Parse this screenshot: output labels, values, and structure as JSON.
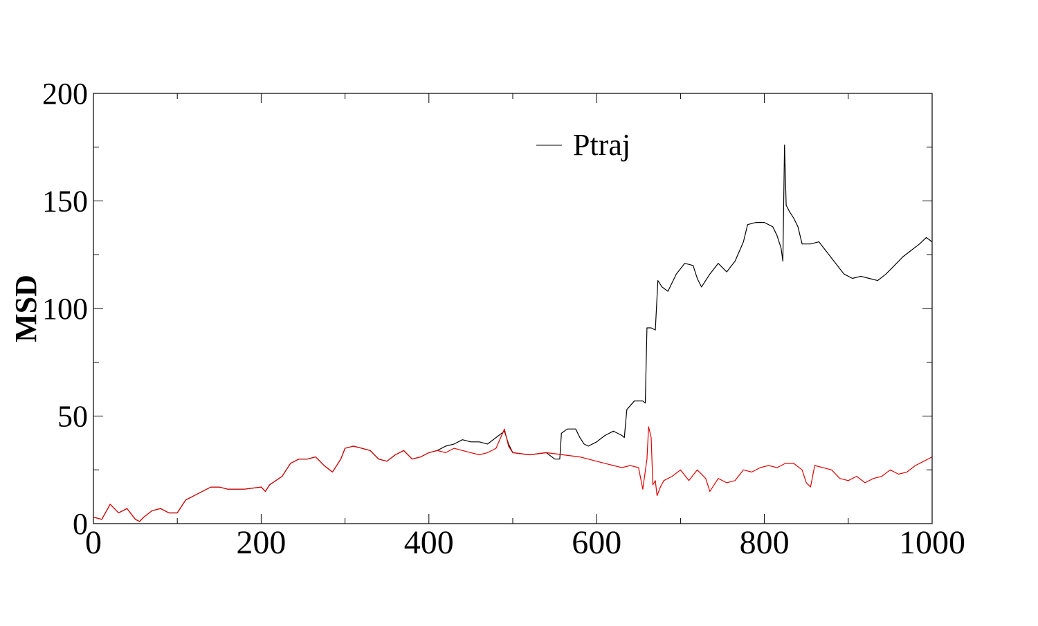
{
  "chart_data": {
    "type": "line",
    "title": "",
    "xlabel": "",
    "ylabel": "MSD",
    "xlim": [
      0,
      1000
    ],
    "ylim": [
      0,
      200
    ],
    "x_ticks": [
      0,
      200,
      400,
      600,
      800,
      1000
    ],
    "y_ticks": [
      0,
      50,
      100,
      150,
      200
    ],
    "grid": false,
    "legend_position": "top-center",
    "series": [
      {
        "name": "Ptraj",
        "color": "#000000",
        "points": [
          [
            0,
            3
          ],
          [
            10,
            2
          ],
          [
            20,
            9
          ],
          [
            30,
            5
          ],
          [
            40,
            7
          ],
          [
            50,
            2
          ],
          [
            55,
            1
          ],
          [
            60,
            3
          ],
          [
            70,
            6
          ],
          [
            80,
            7
          ],
          [
            90,
            5
          ],
          [
            100,
            5
          ],
          [
            110,
            11
          ],
          [
            120,
            13
          ],
          [
            130,
            15
          ],
          [
            140,
            17
          ],
          [
            150,
            17
          ],
          [
            160,
            16
          ],
          [
            180,
            16
          ],
          [
            200,
            17
          ],
          [
            205,
            15
          ],
          [
            210,
            18
          ],
          [
            225,
            22
          ],
          [
            235,
            28
          ],
          [
            245,
            30
          ],
          [
            255,
            30
          ],
          [
            265,
            31
          ],
          [
            275,
            27
          ],
          [
            285,
            24
          ],
          [
            295,
            30
          ],
          [
            300,
            35
          ],
          [
            310,
            36
          ],
          [
            320,
            35
          ],
          [
            330,
            34
          ],
          [
            340,
            30
          ],
          [
            350,
            29
          ],
          [
            360,
            32
          ],
          [
            370,
            34
          ],
          [
            380,
            30
          ],
          [
            390,
            31
          ],
          [
            400,
            33
          ],
          [
            410,
            34
          ],
          [
            420,
            36
          ],
          [
            430,
            37
          ],
          [
            440,
            39
          ],
          [
            450,
            38
          ],
          [
            460,
            38
          ],
          [
            470,
            37
          ],
          [
            480,
            40
          ],
          [
            490,
            43
          ],
          [
            495,
            37
          ],
          [
            500,
            33
          ],
          [
            520,
            32
          ],
          [
            540,
            33
          ],
          [
            550,
            30
          ],
          [
            556,
            30
          ],
          [
            558,
            42
          ],
          [
            565,
            44
          ],
          [
            575,
            44
          ],
          [
            580,
            40
          ],
          [
            585,
            37
          ],
          [
            590,
            36
          ],
          [
            600,
            38
          ],
          [
            610,
            41
          ],
          [
            620,
            43
          ],
          [
            630,
            41
          ],
          [
            633,
            40
          ],
          [
            636,
            53
          ],
          [
            645,
            57
          ],
          [
            655,
            57
          ],
          [
            658,
            56
          ],
          [
            660,
            91
          ],
          [
            665,
            91
          ],
          [
            670,
            90
          ],
          [
            673,
            113
          ],
          [
            678,
            110
          ],
          [
            685,
            108
          ],
          [
            695,
            116
          ],
          [
            705,
            121
          ],
          [
            715,
            120
          ],
          [
            720,
            114
          ],
          [
            725,
            110
          ],
          [
            735,
            116
          ],
          [
            745,
            121
          ],
          [
            755,
            117
          ],
          [
            765,
            122
          ],
          [
            775,
            131
          ],
          [
            780,
            139
          ],
          [
            790,
            140
          ],
          [
            800,
            140
          ],
          [
            810,
            138
          ],
          [
            815,
            134
          ],
          [
            820,
            128
          ],
          [
            822,
            122
          ],
          [
            824,
            176
          ],
          [
            826,
            148
          ],
          [
            830,
            145
          ],
          [
            835,
            142
          ],
          [
            840,
            138
          ],
          [
            845,
            130
          ],
          [
            855,
            130
          ],
          [
            865,
            131
          ],
          [
            875,
            126
          ],
          [
            885,
            121
          ],
          [
            895,
            116
          ],
          [
            905,
            114
          ],
          [
            915,
            115
          ],
          [
            925,
            114
          ],
          [
            935,
            113
          ],
          [
            945,
            116
          ],
          [
            955,
            120
          ],
          [
            965,
            124
          ],
          [
            975,
            127
          ],
          [
            985,
            130
          ],
          [
            993,
            133
          ],
          [
            1000,
            131
          ]
        ]
      },
      {
        "name": "",
        "color": "#e00000",
        "points": [
          [
            0,
            3
          ],
          [
            10,
            2
          ],
          [
            20,
            9
          ],
          [
            30,
            5
          ],
          [
            40,
            7
          ],
          [
            50,
            2
          ],
          [
            55,
            1
          ],
          [
            60,
            3
          ],
          [
            70,
            6
          ],
          [
            80,
            7
          ],
          [
            90,
            5
          ],
          [
            100,
            5
          ],
          [
            110,
            11
          ],
          [
            120,
            13
          ],
          [
            130,
            15
          ],
          [
            140,
            17
          ],
          [
            150,
            17
          ],
          [
            160,
            16
          ],
          [
            180,
            16
          ],
          [
            200,
            17
          ],
          [
            205,
            15
          ],
          [
            210,
            18
          ],
          [
            225,
            22
          ],
          [
            235,
            28
          ],
          [
            245,
            30
          ],
          [
            255,
            30
          ],
          [
            265,
            31
          ],
          [
            275,
            27
          ],
          [
            285,
            24
          ],
          [
            295,
            30
          ],
          [
            300,
            35
          ],
          [
            310,
            36
          ],
          [
            320,
            35
          ],
          [
            330,
            34
          ],
          [
            340,
            30
          ],
          [
            350,
            29
          ],
          [
            360,
            32
          ],
          [
            370,
            34
          ],
          [
            380,
            30
          ],
          [
            390,
            31
          ],
          [
            400,
            33
          ],
          [
            410,
            34
          ],
          [
            420,
            33
          ],
          [
            430,
            35
          ],
          [
            440,
            34
          ],
          [
            450,
            33
          ],
          [
            460,
            32
          ],
          [
            470,
            33
          ],
          [
            480,
            35
          ],
          [
            490,
            44
          ],
          [
            495,
            36
          ],
          [
            500,
            33
          ],
          [
            520,
            32
          ],
          [
            540,
            33
          ],
          [
            560,
            32
          ],
          [
            580,
            31
          ],
          [
            600,
            29
          ],
          [
            610,
            28
          ],
          [
            620,
            27
          ],
          [
            630,
            26
          ],
          [
            640,
            27
          ],
          [
            650,
            26
          ],
          [
            655,
            16
          ],
          [
            660,
            30
          ],
          [
            662,
            45
          ],
          [
            665,
            40
          ],
          [
            667,
            18
          ],
          [
            670,
            20
          ],
          [
            672,
            13
          ],
          [
            676,
            17
          ],
          [
            680,
            20
          ],
          [
            690,
            22
          ],
          [
            700,
            25
          ],
          [
            710,
            20
          ],
          [
            720,
            25
          ],
          [
            730,
            21
          ],
          [
            735,
            15
          ],
          [
            745,
            21
          ],
          [
            755,
            19
          ],
          [
            765,
            20
          ],
          [
            775,
            25
          ],
          [
            785,
            24
          ],
          [
            795,
            26
          ],
          [
            805,
            27
          ],
          [
            815,
            26
          ],
          [
            825,
            28
          ],
          [
            835,
            28
          ],
          [
            845,
            25
          ],
          [
            850,
            19
          ],
          [
            855,
            17
          ],
          [
            860,
            27
          ],
          [
            870,
            26
          ],
          [
            880,
            25
          ],
          [
            890,
            21
          ],
          [
            900,
            20
          ],
          [
            910,
            22
          ],
          [
            920,
            19
          ],
          [
            930,
            21
          ],
          [
            940,
            22
          ],
          [
            950,
            25
          ],
          [
            960,
            23
          ],
          [
            970,
            24
          ],
          [
            980,
            27
          ],
          [
            990,
            29
          ],
          [
            1000,
            31
          ]
        ]
      }
    ]
  }
}
